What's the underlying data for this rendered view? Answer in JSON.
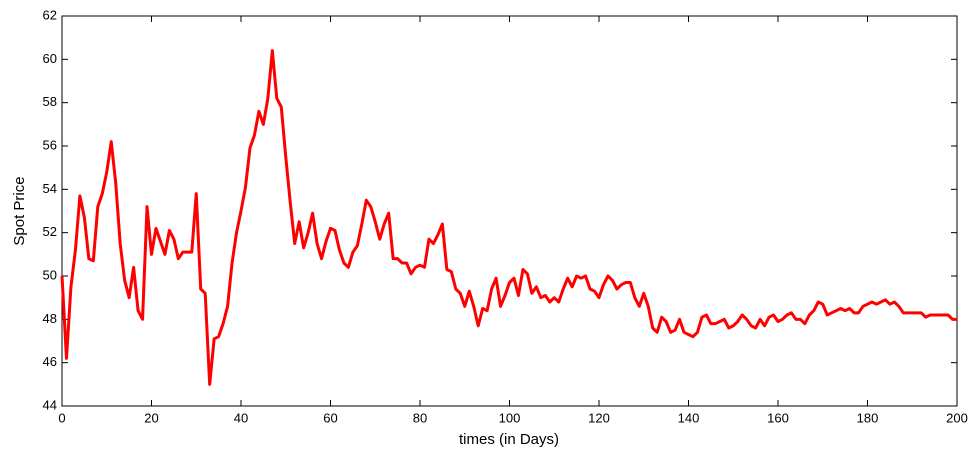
{
  "chart_data": {
    "type": "line",
    "xlabel": "times (in Days)",
    "ylabel": "Spot Price",
    "x": [
      0,
      1,
      2,
      3,
      4,
      5,
      6,
      7,
      8,
      9,
      10,
      11,
      12,
      13,
      14,
      15,
      16,
      17,
      18,
      19,
      20,
      21,
      22,
      23,
      24,
      25,
      26,
      27,
      28,
      29,
      30,
      31,
      32,
      33,
      34,
      35,
      36,
      37,
      38,
      39,
      40,
      41,
      42,
      43,
      44,
      45,
      46,
      47,
      48,
      49,
      50,
      51,
      52,
      53,
      54,
      55,
      56,
      57,
      58,
      59,
      60,
      61,
      62,
      63,
      64,
      65,
      66,
      67,
      68,
      69,
      70,
      71,
      72,
      73,
      74,
      75,
      76,
      77,
      78,
      79,
      80,
      81,
      82,
      83,
      84,
      85,
      86,
      87,
      88,
      89,
      90,
      91,
      92,
      93,
      94,
      95,
      96,
      97,
      98,
      99,
      100,
      101,
      102,
      103,
      104,
      105,
      106,
      107,
      108,
      109,
      110,
      111,
      112,
      113,
      114,
      115,
      116,
      117,
      118,
      119,
      120,
      121,
      122,
      123,
      124,
      125,
      126,
      127,
      128,
      129,
      130,
      131,
      132,
      133,
      134,
      135,
      136,
      137,
      138,
      139,
      140,
      141,
      142,
      143,
      144,
      145,
      146,
      147,
      148,
      149,
      150,
      151,
      152,
      153,
      154,
      155,
      156,
      157,
      158,
      159,
      160,
      161,
      162,
      163,
      164,
      165,
      166,
      167,
      168,
      169,
      170,
      171,
      172,
      173,
      174,
      175,
      176,
      177,
      178,
      179,
      180,
      181,
      182,
      183,
      184,
      185,
      186,
      187,
      188,
      189,
      190,
      191,
      192,
      193,
      194,
      195,
      196,
      197,
      198,
      199,
      200
    ],
    "series": [
      {
        "color": "#ff0000",
        "values": [
          50.0,
          46.2,
          49.5,
          51.2,
          53.7,
          52.7,
          50.8,
          50.7,
          53.2,
          53.8,
          54.8,
          56.2,
          54.3,
          51.5,
          49.8,
          49.0,
          50.4,
          48.4,
          48.0,
          53.2,
          51.0,
          52.2,
          51.6,
          51.0,
          52.1,
          51.7,
          50.8,
          51.1,
          51.1,
          51.1,
          53.8,
          49.4,
          49.2,
          45.0,
          47.1,
          47.2,
          47.8,
          48.6,
          50.6,
          52.0,
          53.0,
          54.1,
          55.9,
          56.5,
          57.6,
          57.0,
          58.2,
          60.4,
          58.2,
          57.8,
          55.5,
          53.4,
          51.5,
          52.5,
          51.3,
          52.0,
          52.9,
          51.5,
          50.8,
          51.6,
          52.2,
          52.1,
          51.2,
          50.6,
          50.4,
          51.1,
          51.4,
          52.4,
          53.5,
          53.2,
          52.5,
          51.7,
          52.4,
          52.9,
          50.8,
          50.8,
          50.6,
          50.6,
          50.1,
          50.4,
          50.5,
          50.4,
          51.7,
          51.5,
          51.9,
          52.4,
          50.3,
          50.2,
          49.4,
          49.2,
          48.6,
          49.3,
          48.6,
          47.7,
          48.5,
          48.4,
          49.4,
          49.9,
          48.6,
          49.1,
          49.7,
          49.9,
          49.1,
          50.3,
          50.1,
          49.2,
          49.5,
          49.0,
          49.1,
          48.8,
          49.0,
          48.8,
          49.4,
          49.9,
          49.5,
          50.0,
          49.9,
          50.0,
          49.4,
          49.3,
          49.0,
          49.6,
          50.0,
          49.8,
          49.4,
          49.6,
          49.7,
          49.7,
          49.0,
          48.6,
          49.2,
          48.6,
          47.6,
          47.4,
          48.1,
          47.9,
          47.4,
          47.5,
          48.0,
          47.4,
          47.3,
          47.2,
          47.4,
          48.1,
          48.2,
          47.8,
          47.8,
          47.9,
          48.0,
          47.6,
          47.7,
          47.9,
          48.2,
          48.0,
          47.7,
          47.6,
          48.0,
          47.7,
          48.1,
          48.2,
          47.9,
          48.0,
          48.2,
          48.3,
          48.0,
          48.0,
          47.8,
          48.2,
          48.4,
          48.8,
          48.7,
          48.2,
          48.3,
          48.4,
          48.5,
          48.4,
          48.5,
          48.3,
          48.3,
          48.6,
          48.7,
          48.8,
          48.7,
          48.8,
          48.9,
          48.7,
          48.8,
          48.6,
          48.3,
          48.3,
          48.3,
          48.3,
          48.3,
          48.1,
          48.2,
          48.2,
          48.2,
          48.2,
          48.2,
          48.0,
          48.0
        ]
      }
    ],
    "xlim": [
      0,
      200
    ],
    "xticks": [
      0,
      20,
      40,
      60,
      80,
      100,
      120,
      140,
      160,
      180,
      200
    ],
    "ylim": [
      44,
      62
    ],
    "yticks": [
      44,
      46,
      48,
      50,
      52,
      54,
      56,
      58,
      60,
      62
    ]
  }
}
